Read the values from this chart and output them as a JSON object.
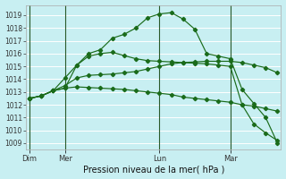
{
  "background_color": "#c8eff2",
  "grid_color": "#b8dfe2",
  "line_color": "#1a6b1a",
  "ylim": [
    1008.5,
    1019.8
  ],
  "yticks": [
    1009,
    1010,
    1011,
    1012,
    1013,
    1014,
    1015,
    1016,
    1017,
    1018,
    1019
  ],
  "xlabel_bottom": "Pression niveau de la mer( hPa )",
  "xtick_labels": [
    "Dim",
    "Mer",
    "Lun",
    "Mar"
  ],
  "xtick_positions": [
    0,
    3,
    11,
    17
  ],
  "vline_positions": [
    0,
    3,
    11,
    17
  ],
  "xlim": [
    -0.3,
    21.3
  ],
  "n_points": 22,
  "series": [
    [
      1012.5,
      1012.7,
      1013.1,
      1013.3,
      1015.1,
      1016.0,
      1016.3,
      1017.2,
      1017.5,
      1018.0,
      1018.8,
      1019.1,
      1019.2,
      1018.7,
      1017.9,
      1016.0,
      1015.8,
      1015.6,
      1013.2,
      1012.1,
      1011.0,
      1009.0
    ],
    [
      1012.5,
      1012.7,
      1013.1,
      1013.5,
      1014.1,
      1014.3,
      1014.35,
      1014.4,
      1014.5,
      1014.6,
      1014.8,
      1015.0,
      1015.2,
      1015.3,
      1015.35,
      1015.4,
      1015.4,
      1015.4,
      1015.3,
      1015.1,
      1014.9,
      1014.5
    ],
    [
      1012.5,
      1012.7,
      1013.1,
      1013.3,
      1013.4,
      1013.35,
      1013.3,
      1013.25,
      1013.2,
      1013.1,
      1013.0,
      1012.9,
      1012.8,
      1012.6,
      1012.5,
      1012.4,
      1012.3,
      1012.2,
      1012.0,
      1011.9,
      1011.7,
      1011.5
    ],
    [
      1012.5,
      1012.7,
      1013.1,
      1014.1,
      1015.1,
      1015.8,
      1016.0,
      1016.1,
      1015.85,
      1015.6,
      1015.45,
      1015.4,
      1015.35,
      1015.3,
      1015.25,
      1015.2,
      1015.1,
      1015.0,
      1012.0,
      1010.5,
      1009.8,
      1009.2
    ]
  ]
}
